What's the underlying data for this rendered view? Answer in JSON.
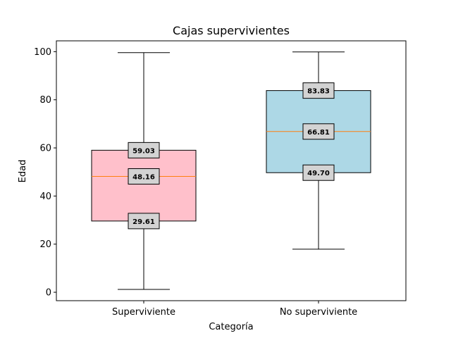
{
  "chart_data": {
    "type": "box",
    "title": "Cajas supervivientes",
    "xlabel": "Categoría",
    "ylabel": "Edad",
    "ylim": [
      -3.5,
      104.5
    ],
    "yticks": [
      0,
      20,
      40,
      60,
      80,
      100
    ],
    "grid": false,
    "categories": [
      "Superviviente",
      "No superviviente"
    ],
    "boxes": [
      {
        "category": "Superviviente",
        "whisker_low": 1.2,
        "q1": 29.61,
        "median": 48.16,
        "q3": 59.03,
        "whisker_high": 99.6,
        "color": "#ffc0cb",
        "labels": [
          "59.03",
          "48.16",
          "29.61"
        ]
      },
      {
        "category": "No superviviente",
        "whisker_low": 17.9,
        "q1": 49.7,
        "median": 66.81,
        "q3": 83.83,
        "whisker_high": 99.9,
        "color": "#add8e6",
        "labels": [
          "83.83",
          "66.81",
          "49.70"
        ]
      }
    ],
    "colors": {
      "median": "#ff7f0e",
      "label_box": "#d3d3d3",
      "axis": "#000000"
    }
  }
}
